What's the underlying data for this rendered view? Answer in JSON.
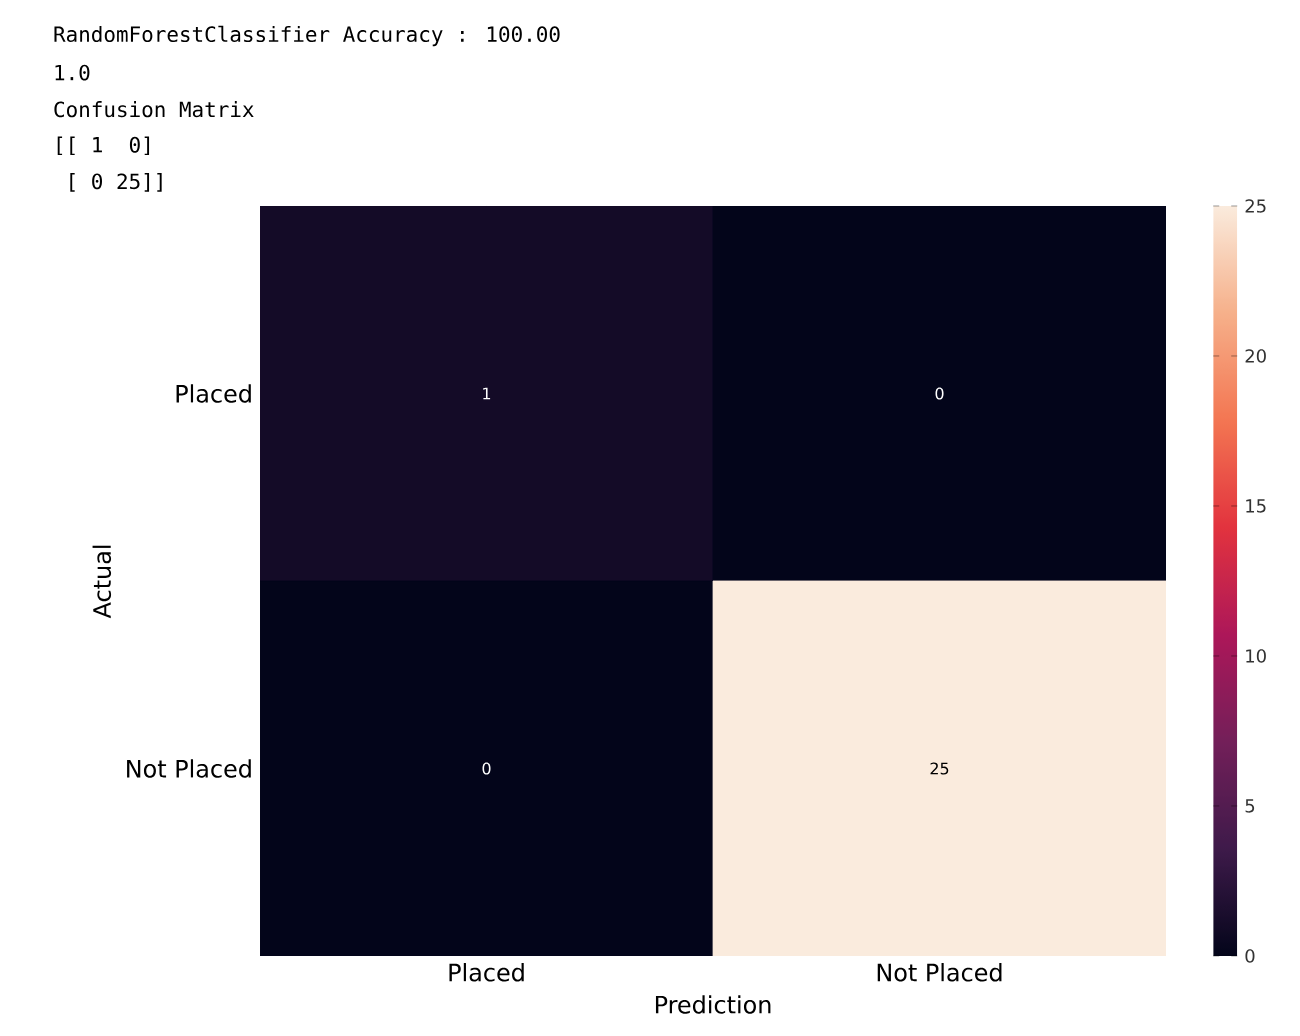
{
  "chart_data": {
    "type": "heatmap",
    "annotations": [
      "RandomForestClassifier Accuracy : 100.00",
      "1.0",
      "Confusion Matrix",
      "[[ 1  0]",
      " [ 0 25]]"
    ],
    "categories": [
      "Placed",
      "Not Placed"
    ],
    "y_categories": [
      "Placed",
      "Not Placed"
    ],
    "cells": [
      [
        1,
        0
      ],
      [
        0,
        25
      ]
    ],
    "data_labels": true,
    "xlabel": "Prediction",
    "ylabel": "Actual",
    "clim": [
      0,
      25
    ],
    "cticks": [
      0,
      5,
      10,
      15,
      20,
      25
    ]
  }
}
